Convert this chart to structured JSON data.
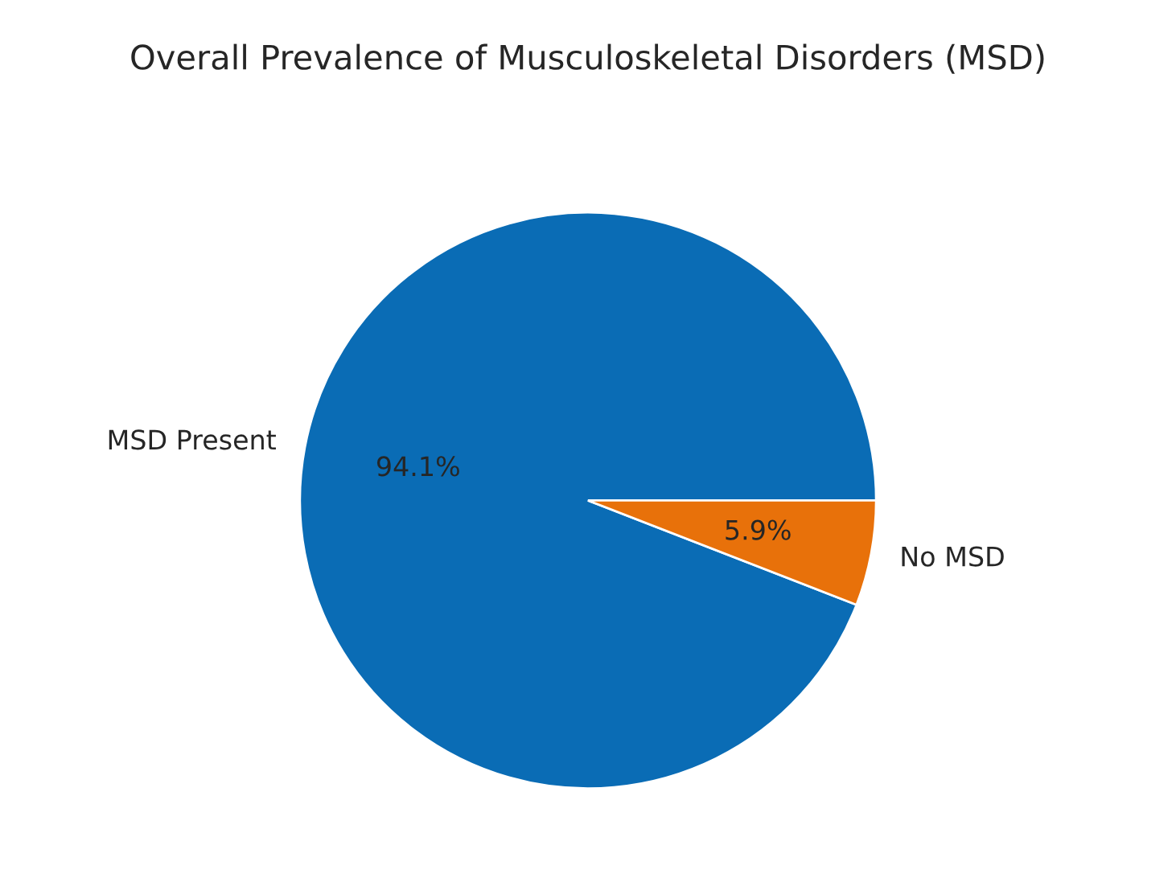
{
  "chart_data": {
    "type": "pie",
    "title": "Overall Prevalence of Musculoskeletal Disorders (MSD)",
    "categories": [
      "MSD Present",
      "No MSD"
    ],
    "values": [
      94.1,
      5.9
    ],
    "colors": [
      "#0a6cb5",
      "#e8710a"
    ],
    "value_labels": [
      "94.1%",
      "5.9%"
    ],
    "legend": false
  }
}
